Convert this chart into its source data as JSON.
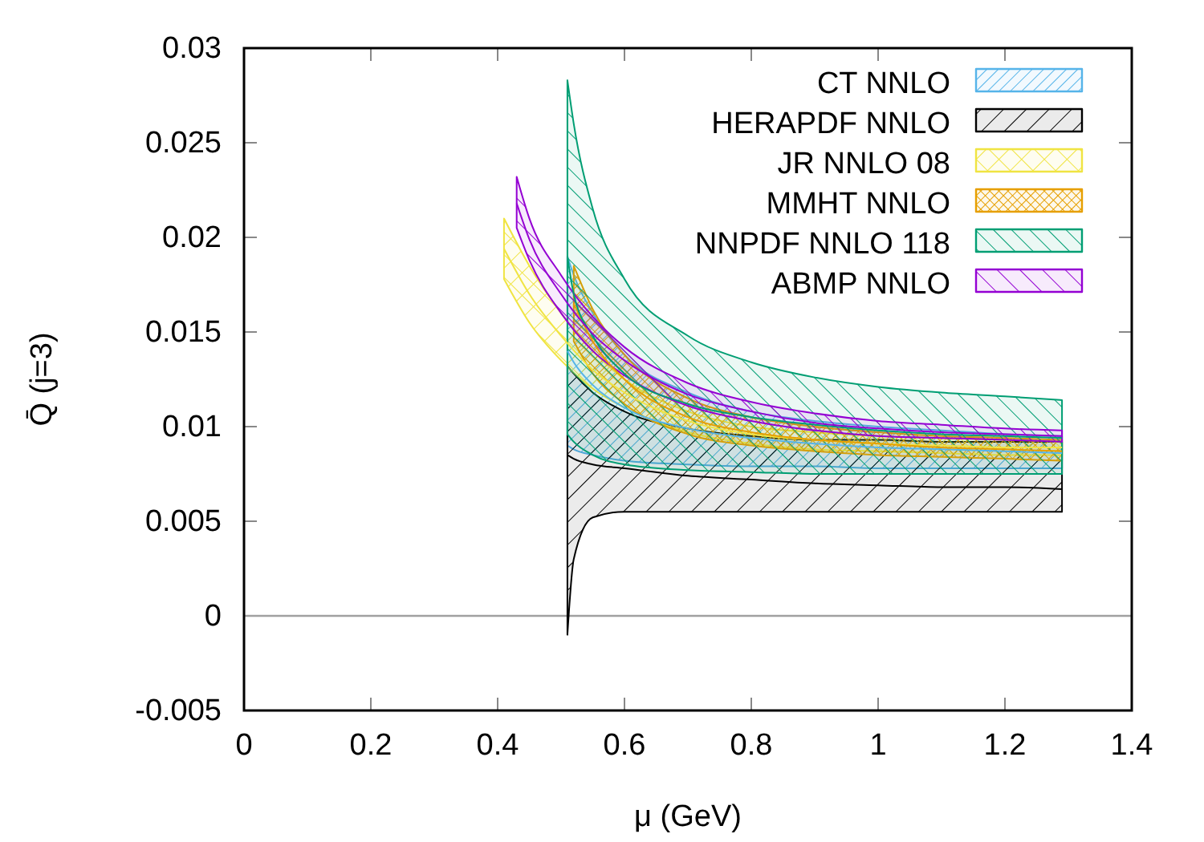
{
  "chart_data": {
    "type": "line",
    "xlabel": "μ (GeV)",
    "ylabel": "Q̄ (j=3)",
    "xlim": [
      0,
      1.4
    ],
    "xticks": [
      0,
      0.2,
      0.4,
      0.6,
      0.8,
      1,
      1.2,
      1.4
    ],
    "ylim": [
      -0.005,
      0.03
    ],
    "yticks": [
      -0.005,
      0,
      0.005,
      0.01,
      0.015,
      0.02,
      0.025,
      0.03
    ],
    "grid": false,
    "legend": "top right",
    "ref_lines": [
      {
        "axis": "y",
        "value": 0,
        "color": "#a0a0a0"
      }
    ],
    "series": [
      {
        "name": "CT NNLO",
        "color": "#56b4e9",
        "x": [
          0.51,
          0.52,
          0.55,
          0.6,
          0.7,
          0.8,
          0.9,
          1.0,
          1.1,
          1.2,
          1.29
        ],
        "values": [
          0.014,
          0.0134,
          0.0122,
          0.011,
          0.0099,
          0.0094,
          0.0091,
          0.0089,
          0.0088,
          0.0087,
          0.0086
        ],
        "upper": [
          0.019,
          0.018,
          0.016,
          0.0138,
          0.0118,
          0.0108,
          0.0103,
          0.01,
          0.0098,
          0.0096,
          0.0095
        ],
        "lower": [
          0.009,
          0.0088,
          0.0085,
          0.0082,
          0.008,
          0.0079,
          0.0079,
          0.0078,
          0.0078,
          0.0078,
          0.0078
        ]
      },
      {
        "name": "HERAPDF NNLO",
        "color": "#000000",
        "x": [
          0.51,
          0.52,
          0.55,
          0.6,
          0.7,
          0.8,
          0.9,
          1.0,
          1.1,
          1.2,
          1.29
        ],
        "values": [
          0.0085,
          0.0083,
          0.008,
          0.0078,
          0.0074,
          0.0072,
          0.007,
          0.0069,
          0.0068,
          0.0068,
          0.0067
        ],
        "upper": [
          0.0132,
          0.0128,
          0.0118,
          0.0108,
          0.0099,
          0.0095,
          0.0093,
          0.0093,
          0.0092,
          0.0092,
          0.0092
        ],
        "lower": [
          -0.001,
          0.003,
          0.0052,
          0.0055,
          0.0055,
          0.0055,
          0.0055,
          0.0055,
          0.0055,
          0.0055,
          0.0055
        ]
      },
      {
        "name": "JR NNLO 08",
        "color": "#f0e442",
        "x": [
          0.41,
          0.45,
          0.5,
          0.55,
          0.6,
          0.7,
          0.8,
          0.9,
          1.0,
          1.1,
          1.2,
          1.29
        ],
        "values": [
          0.0194,
          0.017,
          0.0148,
          0.013,
          0.0118,
          0.0103,
          0.0096,
          0.0093,
          0.0091,
          0.009,
          0.0089,
          0.0089
        ],
        "upper": [
          0.021,
          0.0185,
          0.016,
          0.014,
          0.0125,
          0.0108,
          0.01,
          0.0097,
          0.0095,
          0.0094,
          0.0093,
          0.0092
        ],
        "lower": [
          0.0178,
          0.0155,
          0.0135,
          0.012,
          0.011,
          0.0097,
          0.0091,
          0.0088,
          0.0087,
          0.0086,
          0.0085,
          0.0085
        ]
      },
      {
        "name": "MMHT NNLO",
        "color": "#e69f00",
        "x": [
          0.52,
          0.55,
          0.6,
          0.7,
          0.8,
          0.9,
          1.0,
          1.1,
          1.2,
          1.29
        ],
        "values": [
          0.0165,
          0.0145,
          0.0125,
          0.0105,
          0.0097,
          0.0093,
          0.0091,
          0.0089,
          0.0088,
          0.0087
        ],
        "upper": [
          0.0185,
          0.0162,
          0.0138,
          0.0115,
          0.0105,
          0.01,
          0.0097,
          0.0095,
          0.0094,
          0.0093
        ],
        "lower": [
          0.0145,
          0.0128,
          0.0112,
          0.0096,
          0.009,
          0.0087,
          0.0085,
          0.0084,
          0.0083,
          0.0082
        ]
      },
      {
        "name": "NNPDF NNLO 118",
        "color": "#009e73",
        "x": [
          0.51,
          0.52,
          0.55,
          0.6,
          0.7,
          0.8,
          0.9,
          1.0,
          1.1,
          1.2,
          1.29
        ],
        "values": [
          0.019,
          0.017,
          0.0148,
          0.0128,
          0.0112,
          0.0105,
          0.0101,
          0.0098,
          0.0096,
          0.0095,
          0.0094
        ],
        "upper": [
          0.0283,
          0.026,
          0.0215,
          0.0178,
          0.0148,
          0.0134,
          0.0126,
          0.0121,
          0.0118,
          0.0116,
          0.0114
        ],
        "lower": [
          0.0096,
          0.0092,
          0.0085,
          0.008,
          0.0077,
          0.0076,
          0.0075,
          0.0075,
          0.0075,
          0.0075,
          0.0075
        ]
      },
      {
        "name": "ABMP NNLO",
        "color": "#9400d3",
        "x": [
          0.43,
          0.45,
          0.5,
          0.55,
          0.6,
          0.7,
          0.8,
          0.9,
          1.0,
          1.1,
          1.2,
          1.29
        ],
        "values": [
          0.0218,
          0.0199,
          0.017,
          0.0149,
          0.0135,
          0.0117,
          0.0108,
          0.0102,
          0.0099,
          0.0097,
          0.0096,
          0.0095
        ],
        "upper": [
          0.0232,
          0.021,
          0.018,
          0.0158,
          0.0142,
          0.0123,
          0.0113,
          0.0107,
          0.0103,
          0.0101,
          0.0099,
          0.0098
        ],
        "lower": [
          0.0205,
          0.0188,
          0.016,
          0.014,
          0.0127,
          0.0111,
          0.0103,
          0.0098,
          0.0095,
          0.0094,
          0.0093,
          0.0092
        ]
      }
    ]
  }
}
